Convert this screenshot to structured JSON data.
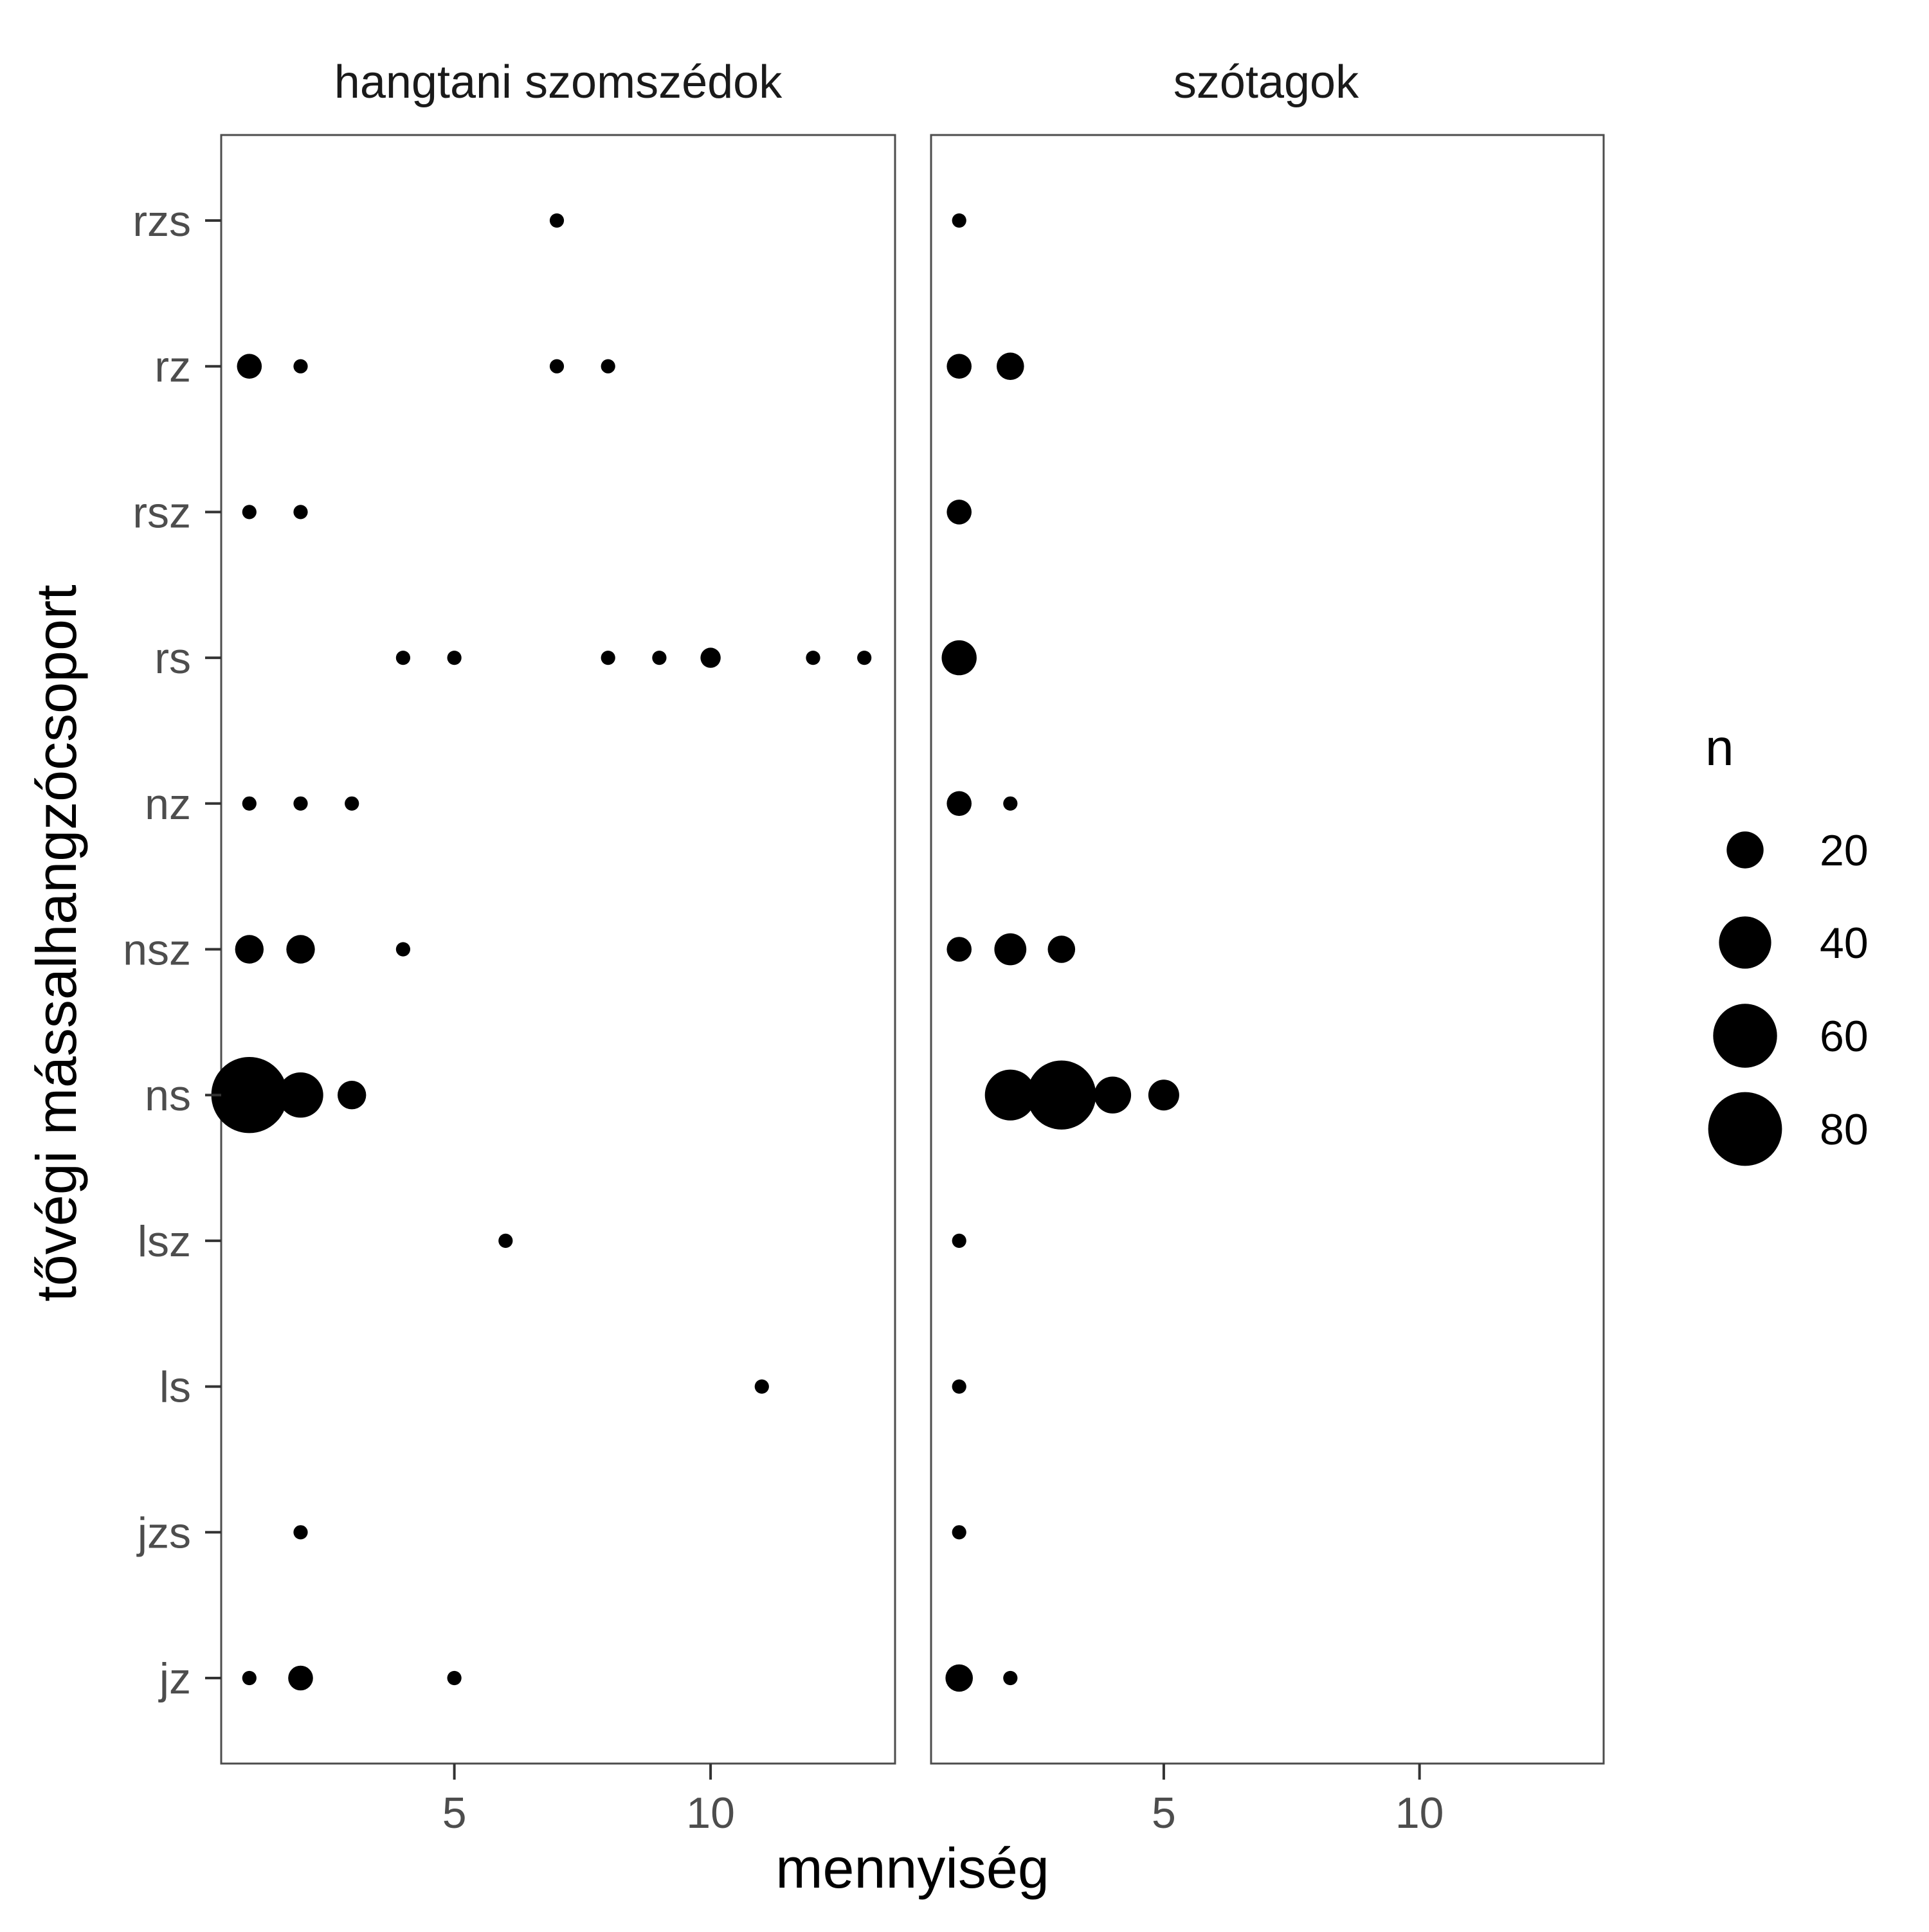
{
  "chart_data": {
    "type": "scatter",
    "facets": [
      "hangtani szomszédok",
      "szótagok"
    ],
    "xlabel": "mennyiség",
    "ylabel": "tővégi mássalhangzócsoport",
    "x_ticks": [
      "5",
      "10"
    ],
    "x_tick_values": [
      5,
      10
    ],
    "xlim": [
      0.45,
      13.6
    ],
    "categories": [
      "jz",
      "jzs",
      "ls",
      "lsz",
      "ns",
      "nsz",
      "nz",
      "rs",
      "rsz",
      "rz",
      "rzs"
    ],
    "size_legend": {
      "title": "n",
      "values": [
        20,
        40,
        60,
        80
      ],
      "labels": [
        "20",
        "40",
        "60",
        "80"
      ]
    },
    "point_color": "#000000",
    "grid": false,
    "legend_position": "right",
    "points": [
      {
        "facet": 0,
        "cat": "rzs",
        "x": 7,
        "n": 3
      },
      {
        "facet": 0,
        "cat": "rz",
        "x": 1,
        "n": 9
      },
      {
        "facet": 0,
        "cat": "rz",
        "x": 2,
        "n": 3
      },
      {
        "facet": 0,
        "cat": "rz",
        "x": 7,
        "n": 3
      },
      {
        "facet": 0,
        "cat": "rz",
        "x": 8,
        "n": 3
      },
      {
        "facet": 0,
        "cat": "rsz",
        "x": 1,
        "n": 3
      },
      {
        "facet": 0,
        "cat": "rsz",
        "x": 2,
        "n": 3
      },
      {
        "facet": 0,
        "cat": "rs",
        "x": 4,
        "n": 3
      },
      {
        "facet": 0,
        "cat": "rs",
        "x": 5,
        "n": 3
      },
      {
        "facet": 0,
        "cat": "rs",
        "x": 8,
        "n": 3
      },
      {
        "facet": 0,
        "cat": "rs",
        "x": 9,
        "n": 3
      },
      {
        "facet": 0,
        "cat": "rs",
        "x": 10,
        "n": 6
      },
      {
        "facet": 0,
        "cat": "rs",
        "x": 12,
        "n": 3
      },
      {
        "facet": 0,
        "cat": "rs",
        "x": 13,
        "n": 3
      },
      {
        "facet": 0,
        "cat": "nz",
        "x": 1,
        "n": 3
      },
      {
        "facet": 0,
        "cat": "nz",
        "x": 2,
        "n": 3
      },
      {
        "facet": 0,
        "cat": "nz",
        "x": 3,
        "n": 3
      },
      {
        "facet": 0,
        "cat": "nsz",
        "x": 1,
        "n": 12
      },
      {
        "facet": 0,
        "cat": "nsz",
        "x": 2,
        "n": 12
      },
      {
        "facet": 0,
        "cat": "nsz",
        "x": 4,
        "n": 3
      },
      {
        "facet": 0,
        "cat": "ns",
        "x": 1,
        "n": 85
      },
      {
        "facet": 0,
        "cat": "ns",
        "x": 2,
        "n": 30
      },
      {
        "facet": 0,
        "cat": "ns",
        "x": 3,
        "n": 12
      },
      {
        "facet": 0,
        "cat": "lsz",
        "x": 6,
        "n": 3
      },
      {
        "facet": 0,
        "cat": "ls",
        "x": 11,
        "n": 3
      },
      {
        "facet": 0,
        "cat": "jzs",
        "x": 2,
        "n": 3
      },
      {
        "facet": 0,
        "cat": "jz",
        "x": 1,
        "n": 3
      },
      {
        "facet": 0,
        "cat": "jz",
        "x": 2,
        "n": 9
      },
      {
        "facet": 0,
        "cat": "jz",
        "x": 5,
        "n": 3
      },
      {
        "facet": 1,
        "cat": "rzs",
        "x": 1,
        "n": 3
      },
      {
        "facet": 1,
        "cat": "rz",
        "x": 1,
        "n": 9
      },
      {
        "facet": 1,
        "cat": "rz",
        "x": 2,
        "n": 11
      },
      {
        "facet": 1,
        "cat": "rsz",
        "x": 1,
        "n": 9
      },
      {
        "facet": 1,
        "cat": "rs",
        "x": 1,
        "n": 18
      },
      {
        "facet": 1,
        "cat": "nz",
        "x": 1,
        "n": 9
      },
      {
        "facet": 1,
        "cat": "nz",
        "x": 2,
        "n": 3
      },
      {
        "facet": 1,
        "cat": "nsz",
        "x": 1,
        "n": 9
      },
      {
        "facet": 1,
        "cat": "nsz",
        "x": 2,
        "n": 15
      },
      {
        "facet": 1,
        "cat": "nsz",
        "x": 3,
        "n": 11
      },
      {
        "facet": 1,
        "cat": "ns",
        "x": 2,
        "n": 38
      },
      {
        "facet": 1,
        "cat": "ns",
        "x": 3,
        "n": 70
      },
      {
        "facet": 1,
        "cat": "ns",
        "x": 4,
        "n": 20
      },
      {
        "facet": 1,
        "cat": "ns",
        "x": 5,
        "n": 14
      },
      {
        "facet": 1,
        "cat": "lsz",
        "x": 1,
        "n": 3
      },
      {
        "facet": 1,
        "cat": "ls",
        "x": 1,
        "n": 3
      },
      {
        "facet": 1,
        "cat": "jzs",
        "x": 1,
        "n": 3
      },
      {
        "facet": 1,
        "cat": "jz",
        "x": 1,
        "n": 11
      },
      {
        "facet": 1,
        "cat": "jz",
        "x": 2,
        "n": 3
      }
    ]
  }
}
